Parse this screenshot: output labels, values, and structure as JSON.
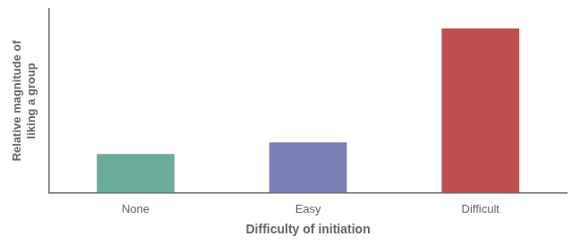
{
  "chart_data": {
    "type": "bar",
    "categories": [
      "None",
      "Easy",
      "Difficult"
    ],
    "values": [
      2.0,
      2.6,
      8.5
    ],
    "colors": [
      "#6aab9c",
      "#7b7fb5",
      "#c0504d"
    ],
    "xlabel": "Difficulty of initiation",
    "ylabel": "Relative magnitude of\nliking a group",
    "ylim": [
      0,
      9.5
    ],
    "tick_labels": "x",
    "grid": false
  }
}
